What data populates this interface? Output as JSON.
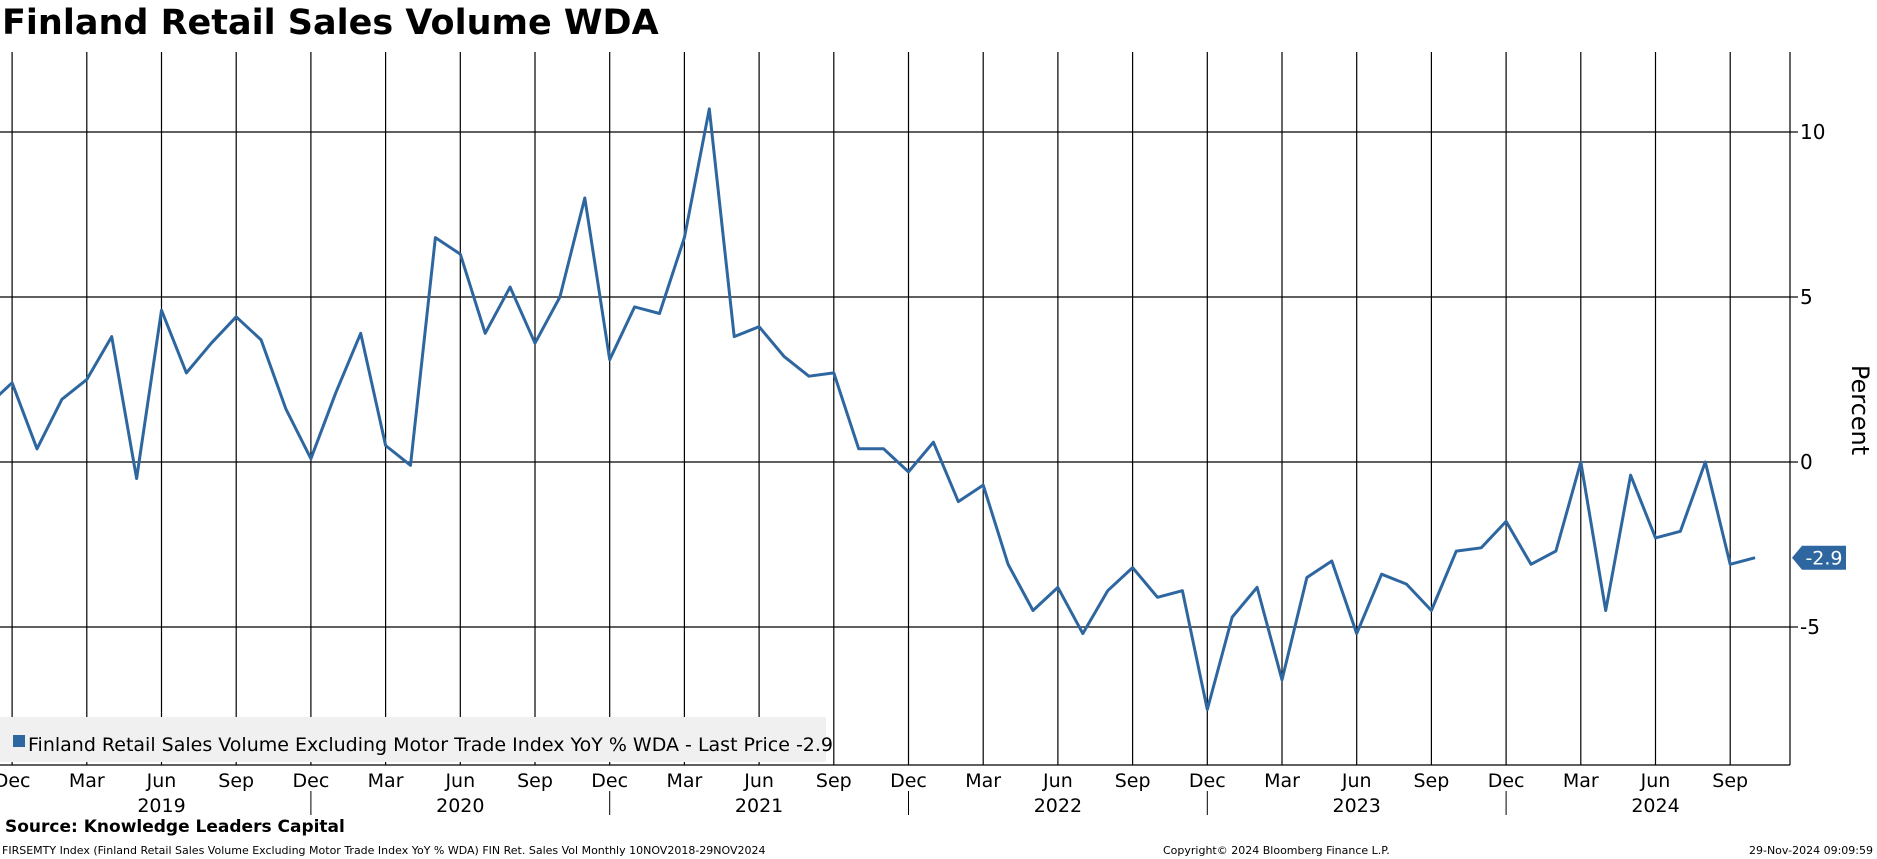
{
  "chart_data": {
    "type": "line",
    "title": "Finland Retail Sales Volume WDA",
    "ylabel": "Percent",
    "ylim": [
      -9.4,
      12.5
    ],
    "y_ticks": [
      10,
      5,
      0,
      -5
    ],
    "x_start": "2018-11",
    "x_end": "2024-10",
    "month_ticks": [
      "Dec",
      "Mar",
      "Jun",
      "Sep",
      "Dec",
      "Mar",
      "Jun",
      "Sep",
      "Dec",
      "Mar",
      "Jun",
      "Sep",
      "Dec",
      "Mar",
      "Jun",
      "Sep",
      "Dec",
      "Mar",
      "Jun",
      "Sep",
      "Dec",
      "Mar",
      "Jun",
      "Sep"
    ],
    "years": [
      "2019",
      "2020",
      "2021",
      "2022",
      "2023",
      "2024"
    ],
    "grid": true,
    "legend_position": "bottom-left",
    "line_color": "#2e67a0",
    "series": [
      {
        "legend": "Finland Retail Sales Volume Excluding Motor Trade Index YoY % WDA - Last Price -2.9",
        "last_value_label": "-2.9",
        "x": [
          "2018-11",
          "2018-12",
          "2019-01",
          "2019-02",
          "2019-03",
          "2019-04",
          "2019-05",
          "2019-06",
          "2019-07",
          "2019-08",
          "2019-09",
          "2019-10",
          "2019-11",
          "2019-12",
          "2020-01",
          "2020-02",
          "2020-03",
          "2020-04",
          "2020-05",
          "2020-06",
          "2020-07",
          "2020-08",
          "2020-09",
          "2020-10",
          "2020-11",
          "2020-12",
          "2021-01",
          "2021-02",
          "2021-03",
          "2021-04",
          "2021-05",
          "2021-06",
          "2021-07",
          "2021-08",
          "2021-09",
          "2021-10",
          "2021-11",
          "2021-12",
          "2022-01",
          "2022-02",
          "2022-03",
          "2022-04",
          "2022-05",
          "2022-06",
          "2022-07",
          "2022-08",
          "2022-09",
          "2022-10",
          "2022-11",
          "2022-12",
          "2023-01",
          "2023-02",
          "2023-03",
          "2023-04",
          "2023-05",
          "2023-06",
          "2023-07",
          "2023-08",
          "2023-09",
          "2023-10",
          "2023-11",
          "2023-12",
          "2024-01",
          "2024-02",
          "2024-03",
          "2024-04",
          "2024-05",
          "2024-06",
          "2024-07",
          "2024-08",
          "2024-09",
          "2024-10"
        ],
        "values": [
          1.7,
          2.4,
          0.4,
          1.9,
          2.5,
          3.8,
          -0.5,
          4.6,
          2.7,
          3.6,
          4.4,
          3.7,
          1.6,
          0.1,
          2.1,
          3.9,
          0.5,
          -0.1,
          6.8,
          6.3,
          3.9,
          5.3,
          3.6,
          5.0,
          8.0,
          3.1,
          4.7,
          4.5,
          6.8,
          10.7,
          3.8,
          4.1,
          3.2,
          2.6,
          2.7,
          0.4,
          0.4,
          -0.3,
          0.6,
          -1.2,
          -0.7,
          -3.1,
          -4.5,
          -3.8,
          -5.2,
          -3.9,
          -3.2,
          -4.1,
          -3.9,
          -7.5,
          -4.7,
          -3.8,
          -6.6,
          -3.5,
          -3.0,
          -5.2,
          -3.4,
          -3.7,
          -4.5,
          -2.7,
          -2.6,
          -1.8,
          -3.1,
          -2.7,
          0.0,
          -4.5,
          -0.4,
          -2.3,
          -2.1,
          0.0,
          -3.1,
          -2.9
        ]
      }
    ]
  },
  "footer": {
    "source": "Source: Knowledge Leaders Capital",
    "footnote": "FIRSEMTY Index (Finland Retail Sales Volume Excluding Motor Trade Index YoY % WDA) FIN Ret. Sales Vol  Monthly 10NOV2018-29NOV2024",
    "copyright": "Copyright© 2024 Bloomberg Finance L.P.",
    "timestamp": "29-Nov-2024 09:09:59"
  }
}
